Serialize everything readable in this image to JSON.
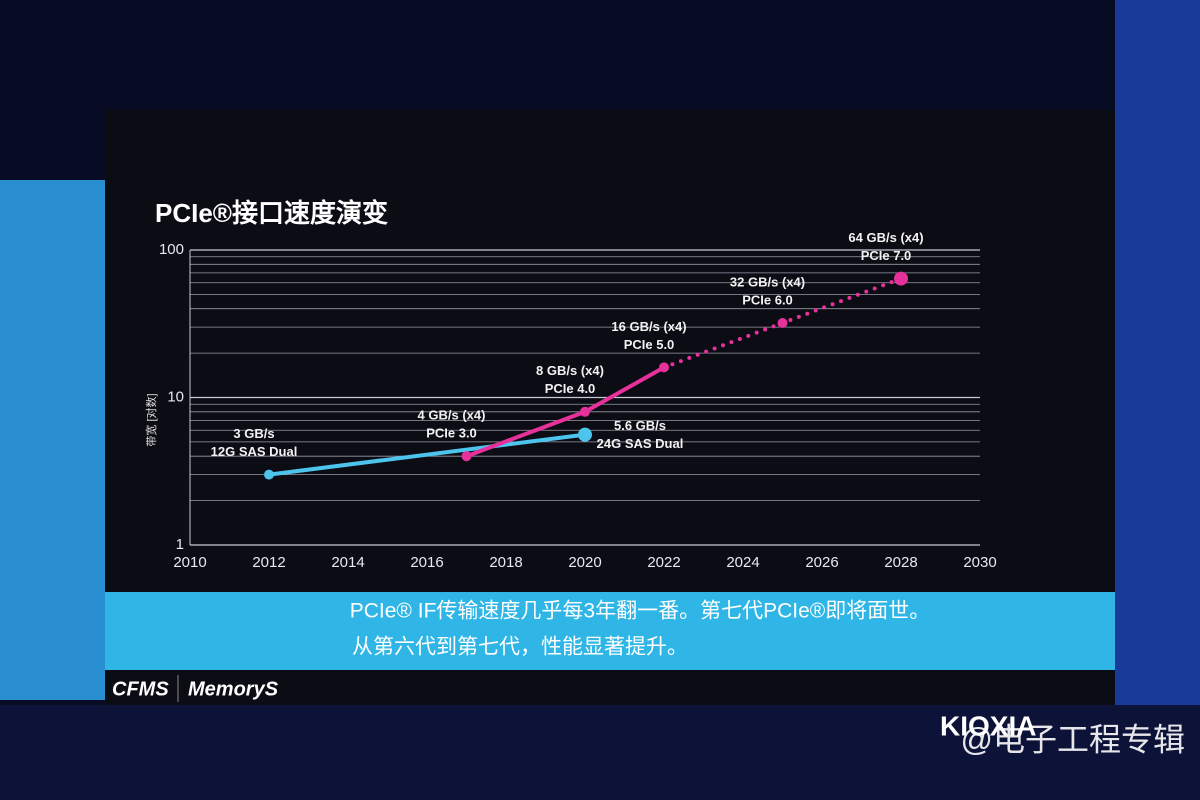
{
  "chart_data": {
    "type": "line",
    "title": "PCIe®接口速度演变",
    "y_label": "带宽 [对数]",
    "log_y": true,
    "xlim": [
      2010,
      2030
    ],
    "xticks": [
      2010,
      2012,
      2014,
      2016,
      2018,
      2020,
      2022,
      2024,
      2026,
      2028,
      2030
    ],
    "ylim": [
      1,
      100
    ],
    "yticks": [
      1,
      10,
      100
    ],
    "minor_yticks": [
      2,
      3,
      4,
      5,
      6,
      7,
      8,
      9,
      20,
      30,
      40,
      50,
      60,
      70,
      80,
      90
    ],
    "grid": true,
    "series": [
      {
        "color": "#4cc4ec",
        "x": [
          2012,
          2020
        ],
        "values": [
          3,
          5.6
        ],
        "value_labels": [
          "3 GB/s",
          "5.6 GB/s"
        ],
        "point_notes": [
          "12G SAS Dual",
          "24G SAS Dual"
        ]
      },
      {
        "color": "#e6319b",
        "x": [
          2017,
          2020,
          2022,
          2025,
          2028
        ],
        "values": [
          4,
          8,
          16,
          32,
          64
        ],
        "value_labels": [
          "4 GB/s (x4)",
          "8 GB/s (x4)",
          "16 GB/s (x4)",
          "32 GB/s (x4)",
          "64 GB/s (x4)"
        ],
        "point_notes": [
          "PCIe 3.0",
          "PCIe 4.0",
          "PCIe 5.0",
          "PCIe 6.0",
          "PCIe 7.0"
        ],
        "dotted_after_x": 2022
      }
    ]
  },
  "caption": [
    "PCIe® IF传输速度几乎每3年翻一番。第七代PCIe®即将面世。",
    "从第六代到第七代，性能显著提升。"
  ],
  "logos": {
    "left": "CFMS",
    "middle": "MemoryS",
    "right": "KIOXIA"
  },
  "watermark": "@电子工程专辑"
}
